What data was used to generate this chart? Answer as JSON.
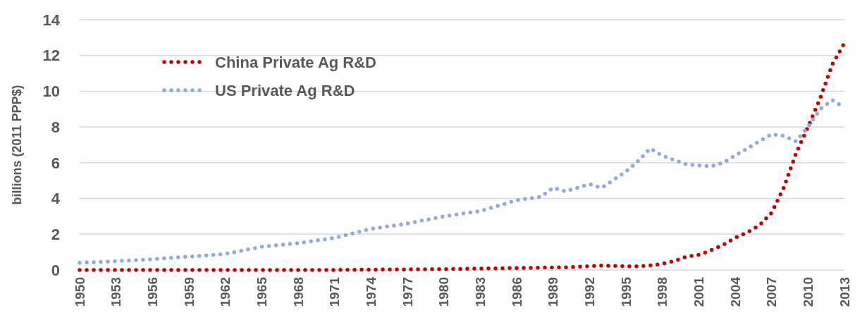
{
  "chart_data": {
    "type": "line",
    "ylabel": "billions (2011 PPP$)",
    "xlim": [
      1950,
      2013
    ],
    "xticks": [
      1950,
      1953,
      1956,
      1959,
      1962,
      1965,
      1968,
      1971,
      1974,
      1977,
      1980,
      1983,
      1986,
      1989,
      1992,
      1995,
      1998,
      2001,
      2004,
      2007,
      2010,
      2013
    ],
    "ylim": [
      0,
      14
    ],
    "yticks": [
      0,
      2,
      4,
      6,
      8,
      10,
      12,
      14
    ],
    "grid": "y",
    "legend": "top left",
    "line_style": "dotted",
    "series": [
      {
        "name": "China Private Ag R&D",
        "color": "#c00000",
        "x": [
          1950,
          1960,
          1970,
          1980,
          1985,
          1990,
          1993,
          1996,
          1997,
          1998,
          1999,
          2000,
          2001,
          2002,
          2003,
          2004,
          2005,
          2006,
          2007,
          2008,
          2009,
          2010,
          2011,
          2012,
          2013
        ],
        "values": [
          0,
          0,
          0,
          0.05,
          0.1,
          0.15,
          0.25,
          0.2,
          0.25,
          0.35,
          0.5,
          0.75,
          0.85,
          1.1,
          1.4,
          1.8,
          2.1,
          2.5,
          3.2,
          4.6,
          6.5,
          8.0,
          9.6,
          11.5,
          12.7
        ]
      },
      {
        "name": "US Private Ag R&D",
        "color": "#8faadc",
        "x": [
          1950,
          1953,
          1956,
          1959,
          1962,
          1965,
          1968,
          1971,
          1974,
          1977,
          1980,
          1983,
          1986,
          1988,
          1989,
          1990,
          1992,
          1993,
          1995,
          1996,
          1997,
          1998,
          2000,
          2002,
          2003,
          2005,
          2007,
          2008,
          2009,
          2010,
          2011,
          2012,
          2013
        ],
        "values": [
          0.4,
          0.5,
          0.6,
          0.75,
          0.9,
          1.3,
          1.5,
          1.8,
          2.3,
          2.6,
          3.0,
          3.3,
          3.9,
          4.1,
          4.6,
          4.4,
          4.8,
          4.6,
          5.5,
          6.1,
          6.8,
          6.4,
          5.9,
          5.8,
          6.0,
          6.8,
          7.6,
          7.5,
          7.2,
          8.0,
          9.0,
          9.5,
          9.1
        ]
      }
    ]
  }
}
